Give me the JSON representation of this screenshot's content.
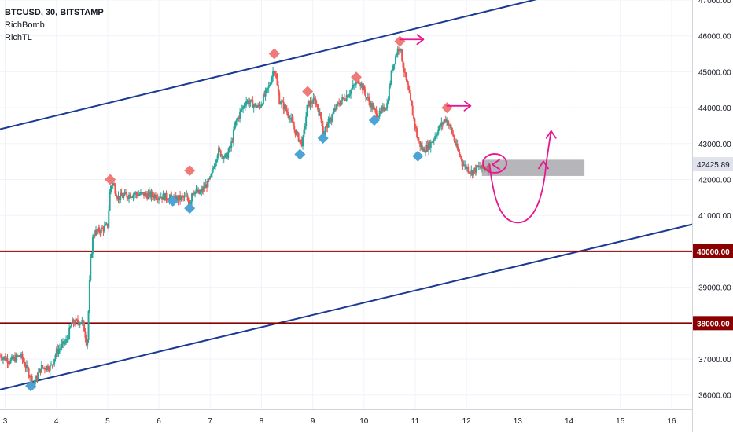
{
  "header": {
    "symbol_line": "BTCUSD, 30, BITSTAMP",
    "indicators": [
      "RichBomb",
      "RichTL"
    ]
  },
  "chart_data": {
    "type": "candlestick",
    "price_axis": {
      "ticks": [
        "47000.00",
        "46000.00",
        "45000.00",
        "44000.00",
        "43000.00",
        "42000.00",
        "41000.00",
        "39000.00",
        "37000.00",
        "36000.00"
      ],
      "range": [
        35600,
        47000
      ]
    },
    "time_axis": {
      "ticks": [
        "3",
        "4",
        "5",
        "6",
        "7",
        "8",
        "9",
        "10",
        "11",
        "12",
        "13",
        "14",
        "15",
        "16"
      ],
      "range": [
        2.9,
        16.4
      ]
    },
    "current_price": {
      "label": "42425.89",
      "value": 42425.89,
      "color": "#B2B5BE"
    },
    "horizontal_levels": [
      {
        "label": "40000.00",
        "value": 40000,
        "color": "#8B0000"
      },
      {
        "label": "38000.00",
        "value": 38000,
        "color": "#8B0000"
      }
    ],
    "channel_lines": [
      {
        "name": "upper",
        "points": [
          [
            2.9,
            43400
          ],
          [
            13.6,
            47100
          ]
        ],
        "color": "#1A3A94"
      },
      {
        "name": "lower",
        "points": [
          [
            2.9,
            36150
          ],
          [
            16.4,
            40750
          ]
        ],
        "color": "#1A3A94"
      }
    ],
    "zone": {
      "x": [
        12.3,
        14.3
      ],
      "y": [
        42100,
        42550
      ],
      "color": "#A8A8AE"
    },
    "price_path": [
      [
        2.9,
        37100
      ],
      [
        3.1,
        36950
      ],
      [
        3.3,
        37100
      ],
      [
        3.5,
        36500
      ],
      [
        3.55,
        36250
      ],
      [
        3.7,
        36750
      ],
      [
        3.9,
        36800
      ],
      [
        4.0,
        37200
      ],
      [
        4.2,
        37500
      ],
      [
        4.3,
        38000
      ],
      [
        4.5,
        38050
      ],
      [
        4.55,
        37800
      ],
      [
        4.6,
        37350
      ],
      [
        4.66,
        39600
      ],
      [
        4.72,
        40500
      ],
      [
        5.0,
        40700
      ],
      [
        5.05,
        41800
      ],
      [
        5.1,
        41900
      ],
      [
        5.2,
        41500
      ],
      [
        5.5,
        41600
      ],
      [
        6.0,
        41550
      ],
      [
        6.3,
        41450
      ],
      [
        6.55,
        41500
      ],
      [
        6.6,
        41250
      ],
      [
        6.65,
        41700
      ],
      [
        6.8,
        41600
      ],
      [
        7.0,
        42000
      ],
      [
        7.15,
        42800
      ],
      [
        7.3,
        42600
      ],
      [
        7.4,
        42900
      ],
      [
        7.5,
        43600
      ],
      [
        7.7,
        44200
      ],
      [
        7.95,
        44000
      ],
      [
        8.15,
        44600
      ],
      [
        8.25,
        45150
      ],
      [
        8.35,
        44200
      ],
      [
        8.5,
        43900
      ],
      [
        8.7,
        43200
      ],
      [
        8.8,
        43000
      ],
      [
        8.9,
        44100
      ],
      [
        9.05,
        44200
      ],
      [
        9.2,
        43500
      ],
      [
        9.2,
        43300
      ],
      [
        9.35,
        43700
      ],
      [
        9.5,
        44100
      ],
      [
        9.7,
        44400
      ],
      [
        9.9,
        44800
      ],
      [
        10.05,
        44300
      ],
      [
        10.2,
        43900
      ],
      [
        10.3,
        43800
      ],
      [
        10.45,
        44100
      ],
      [
        10.55,
        45100
      ],
      [
        10.65,
        45600
      ],
      [
        10.7,
        45700
      ],
      [
        10.8,
        44900
      ],
      [
        10.9,
        44200
      ],
      [
        11.05,
        43100
      ],
      [
        11.15,
        42800
      ],
      [
        11.3,
        43000
      ],
      [
        11.45,
        43400
      ],
      [
        11.6,
        43700
      ],
      [
        11.7,
        43400
      ],
      [
        11.8,
        42900
      ],
      [
        11.95,
        42400
      ],
      [
        12.1,
        42200
      ],
      [
        12.25,
        42350
      ],
      [
        12.3,
        42300
      ],
      [
        12.45,
        42380
      ]
    ],
    "markers": [
      {
        "x": 3.5,
        "y": 36250,
        "dir": "down",
        "color": "#4BA3D6"
      },
      {
        "x": 5.05,
        "y": 42000,
        "dir": "up",
        "color": "#F07A78"
      },
      {
        "x": 6.27,
        "y": 41400,
        "dir": "down",
        "color": "#4BA3D6"
      },
      {
        "x": 6.6,
        "y": 41200,
        "dir": "down",
        "color": "#4BA3D6"
      },
      {
        "x": 6.6,
        "y": 42250,
        "dir": "up",
        "color": "#F07A78"
      },
      {
        "x": 8.25,
        "y": 45500,
        "dir": "up",
        "color": "#F07A78"
      },
      {
        "x": 8.75,
        "y": 42700,
        "dir": "down",
        "color": "#4BA3D6"
      },
      {
        "x": 8.9,
        "y": 44450,
        "dir": "up",
        "color": "#F07A78"
      },
      {
        "x": 9.2,
        "y": 43150,
        "dir": "down",
        "color": "#4BA3D6"
      },
      {
        "x": 9.85,
        "y": 44850,
        "dir": "up",
        "color": "#F07A78"
      },
      {
        "x": 10.2,
        "y": 43650,
        "dir": "down",
        "color": "#4BA3D6"
      },
      {
        "x": 10.7,
        "y": 45850,
        "dir": "up",
        "color": "#F07A78"
      },
      {
        "x": 11.05,
        "y": 42650,
        "dir": "down",
        "color": "#4BA3D6"
      },
      {
        "x": 11.62,
        "y": 44000,
        "dir": "up",
        "color": "#F07A78"
      }
    ],
    "drawing_color": "#E8168F",
    "colors": {
      "up": "#26A69A",
      "down": "#EF5350",
      "axis_text": "#131722",
      "grid": "#F0F3FA"
    }
  }
}
